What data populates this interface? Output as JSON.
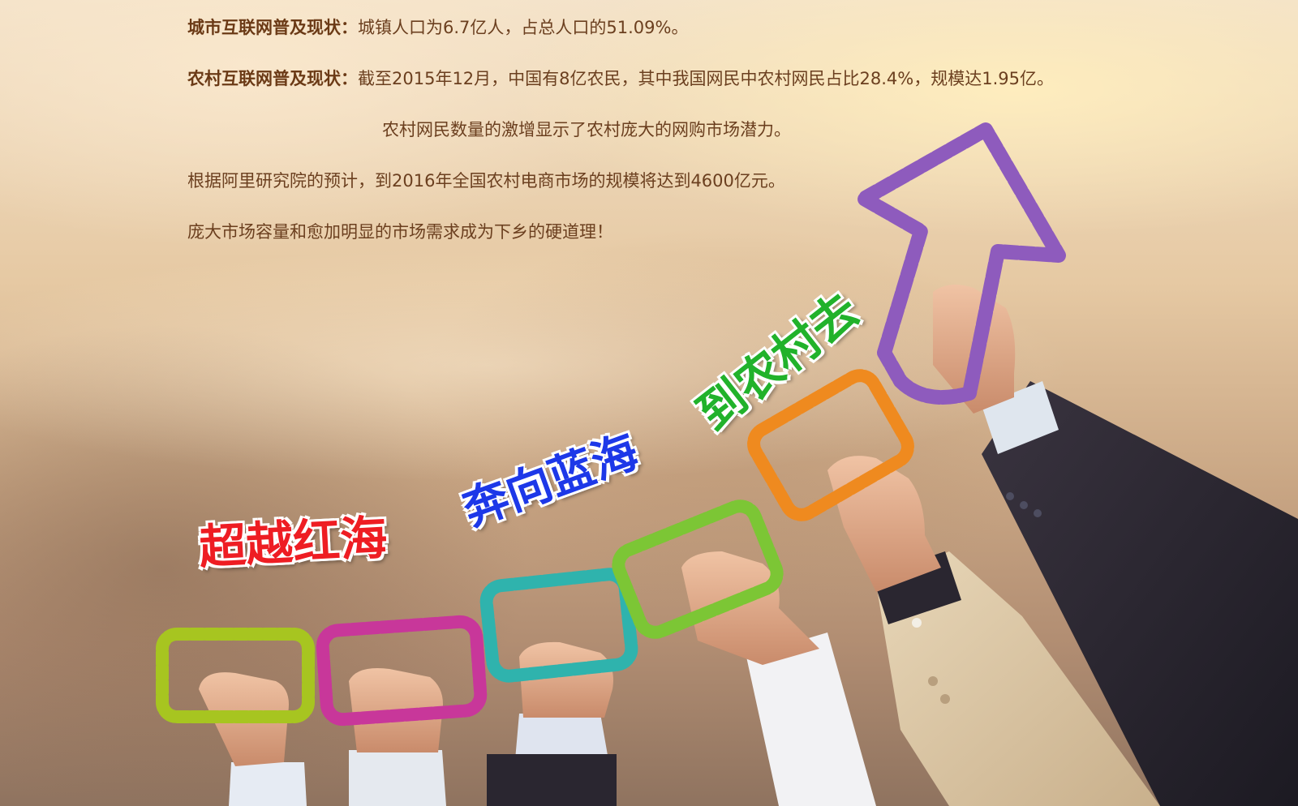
{
  "info": {
    "rows": [
      {
        "label": "城市互联网普及现状：",
        "text": "城镇人口为6.7亿人，占总人口的51.09%。"
      },
      {
        "label": "农村互联网普及现状：",
        "text": "截至2015年12月，中国有8亿农民，其中我国网民中农村网民占比28.4%，规模达1.95亿。"
      },
      {
        "label": "",
        "text": "农村网民数量的激增显示了农村庞大的网购市场潜力。"
      },
      {
        "label": "",
        "text": "根据阿里研究院的预计，到2016年全国农村电商市场的规模将达到4600亿元。"
      },
      {
        "label": "",
        "text": "庞大市场容量和愈加明显的市场需求成为下乡的硬道理！"
      }
    ]
  },
  "slogans": {
    "first": "超越红海",
    "second": "奔向蓝海",
    "third": "到农村去"
  },
  "colors": {
    "rope_yellowgreen": "#a7c520",
    "rope_magenta": "#c8379a",
    "rope_teal": "#2fb3ad",
    "rope_green": "#7cc635",
    "rope_orange": "#ef8a1f",
    "rope_purple": "#8e5bbd",
    "slogan_red": "#ee1d23",
    "slogan_blue": "#1d38e8",
    "slogan_green": "#21b22b"
  }
}
